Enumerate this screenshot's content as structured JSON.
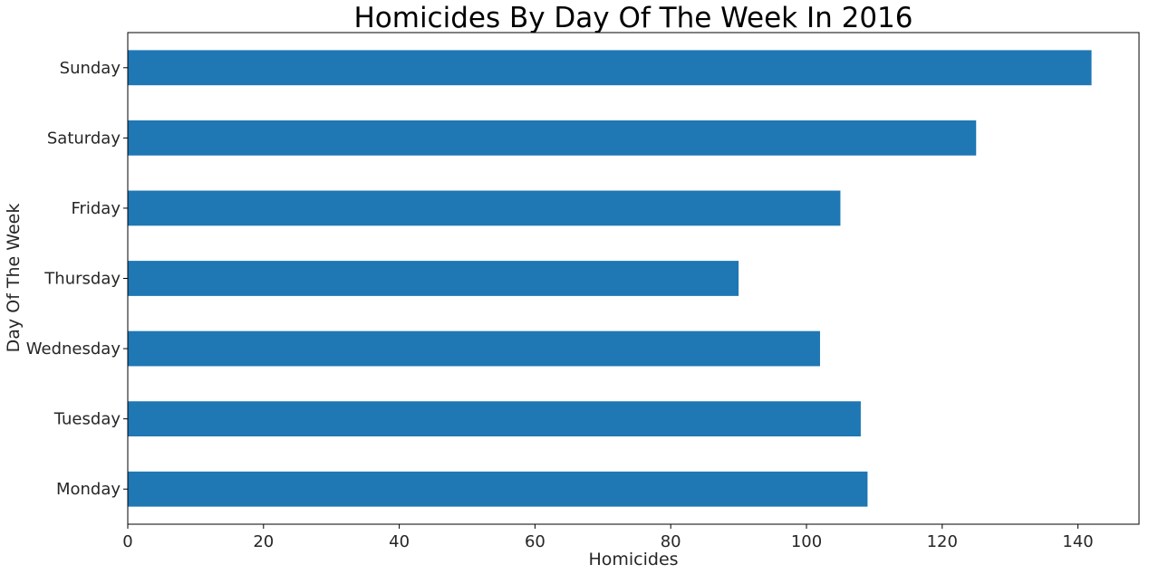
{
  "chart_data": {
    "type": "bar",
    "orientation": "horizontal",
    "title": "Homicides By Day Of The Week In 2016",
    "xlabel": "Homicides",
    "ylabel": "Day Of The Week",
    "categories": [
      "Monday",
      "Tuesday",
      "Wednesday",
      "Thursday",
      "Friday",
      "Saturday",
      "Sunday"
    ],
    "values": [
      109,
      108,
      102,
      90,
      105,
      125,
      142
    ],
    "xlim": [
      0,
      149
    ],
    "xticks": [
      0,
      20,
      40,
      60,
      80,
      100,
      120,
      140
    ],
    "grid": false,
    "bar_color": "#1f77b4"
  }
}
